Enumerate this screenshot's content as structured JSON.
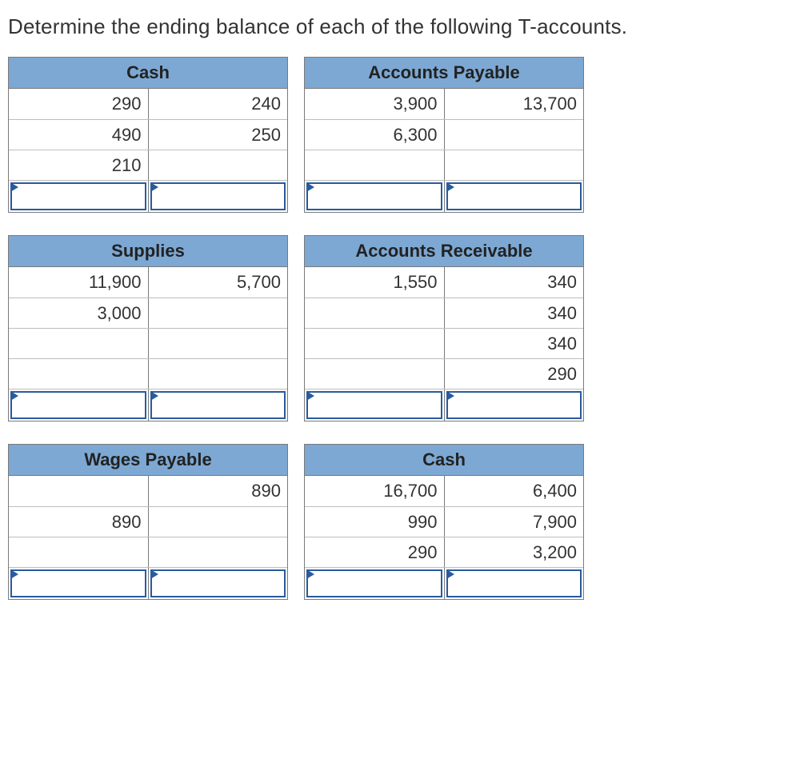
{
  "prompt": "Determine the ending balance of each of the following T-accounts.",
  "colors": {
    "header_bg": "#7da8d3",
    "border": "#7a7a7a",
    "cell_divider": "#bdbdbd",
    "input_border": "#295b9e",
    "text": "#333333",
    "background": "#ffffff"
  },
  "typography": {
    "prompt_fontsize": 26,
    "header_fontsize": 22,
    "cell_fontsize": 22
  },
  "accounts": [
    {
      "id": "cash1",
      "title": "Cash",
      "rows": [
        {
          "debit": "290",
          "credit": "240"
        },
        {
          "debit": "490",
          "credit": "250"
        },
        {
          "debit": "210",
          "credit": ""
        }
      ]
    },
    {
      "id": "ap",
      "title": "Accounts Payable",
      "rows": [
        {
          "debit": "3,900",
          "credit": "13,700"
        },
        {
          "debit": "6,300",
          "credit": ""
        },
        {
          "debit": "",
          "credit": ""
        }
      ]
    },
    {
      "id": "supplies",
      "title": "Supplies",
      "rows": [
        {
          "debit": "11,900",
          "credit": "5,700"
        },
        {
          "debit": "3,000",
          "credit": ""
        },
        {
          "debit": "",
          "credit": ""
        },
        {
          "debit": "",
          "credit": ""
        }
      ]
    },
    {
      "id": "ar",
      "title": "Accounts Receivable",
      "rows": [
        {
          "debit": "1,550",
          "credit": "340"
        },
        {
          "debit": "",
          "credit": "340"
        },
        {
          "debit": "",
          "credit": "340"
        },
        {
          "debit": "",
          "credit": "290"
        }
      ]
    },
    {
      "id": "wages",
      "title": "Wages Payable",
      "rows": [
        {
          "debit": "",
          "credit": "890"
        },
        {
          "debit": "890",
          "credit": ""
        },
        {
          "debit": "",
          "credit": ""
        }
      ]
    },
    {
      "id": "cash2",
      "title": "Cash",
      "rows": [
        {
          "debit": "16,700",
          "credit": "6,400"
        },
        {
          "debit": "990",
          "credit": "7,900"
        },
        {
          "debit": "290",
          "credit": "3,200"
        }
      ]
    }
  ]
}
